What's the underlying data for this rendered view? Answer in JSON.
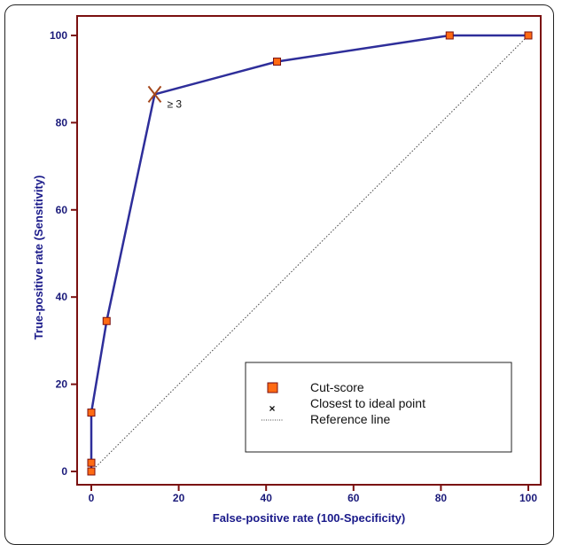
{
  "chart_data": {
    "type": "line",
    "title": "",
    "xlabel": "False-positive rate (100-Specificity)",
    "ylabel": "True-positive rate (Sensitivity)",
    "xlim": [
      0,
      100
    ],
    "ylim": [
      0,
      100
    ],
    "xticks": [
      "0",
      "20",
      "40",
      "60",
      "80",
      "100"
    ],
    "yticks": [
      "0",
      "20",
      "40",
      "60",
      "80",
      "100"
    ],
    "grid": false,
    "series": [
      {
        "name": "Cut-score",
        "color": "#2e2e9a",
        "marker_color": "#ff6a13",
        "points": [
          {
            "x": 0,
            "y": 0
          },
          {
            "x": 0,
            "y": 2
          },
          {
            "x": 0,
            "y": 13.5
          },
          {
            "x": 3.5,
            "y": 34.5
          },
          {
            "x": 14.5,
            "y": 86.5
          },
          {
            "x": 42.5,
            "y": 94
          },
          {
            "x": 82,
            "y": 100
          },
          {
            "x": 100,
            "y": 100
          }
        ],
        "marker_indices": [
          0,
          1,
          2,
          3,
          5,
          6,
          7
        ]
      }
    ],
    "ideal_point": {
      "x": 14.5,
      "y": 86.5,
      "label": "≥ 3",
      "name": "Closest to ideal point"
    },
    "reference_line": {
      "name": "Reference line",
      "from": [
        0,
        0
      ],
      "to": [
        100,
        100
      ]
    },
    "legend": {
      "position": "bottom-right",
      "items": [
        {
          "name": "Cut-score",
          "symbol": "square"
        },
        {
          "name": "Closest to ideal point",
          "symbol": "x"
        },
        {
          "name": "Reference line",
          "symbol": "dotted-line"
        }
      ]
    },
    "colors": {
      "axis_frame": "#7a1010",
      "curve": "#2e2e9a",
      "marker_fill": "#ff6a13",
      "marker_stroke": "#7a1010",
      "ideal_marker": "#a5481d",
      "reference": "#444444"
    }
  }
}
